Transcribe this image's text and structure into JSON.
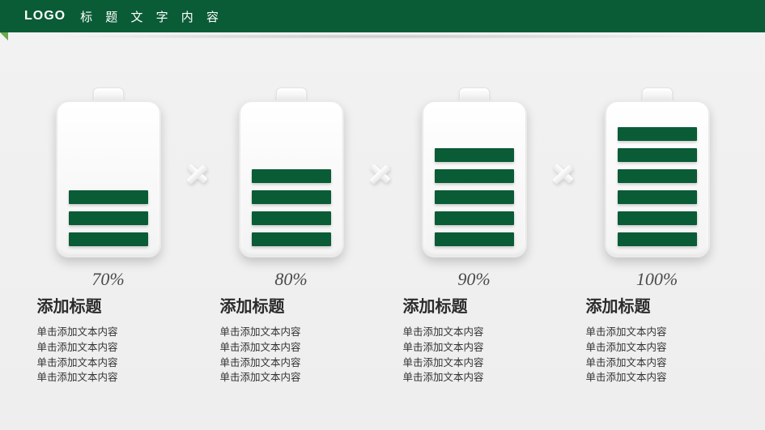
{
  "header": {
    "logo": "LOGO",
    "title": "标 题 文 字 内 容"
  },
  "style": {
    "accent_color": "#0a5c36",
    "bar_color": "#0a5c36",
    "background": "#f1f1f1",
    "battery_body": "#ffffff",
    "max_bars": 7
  },
  "batteries": [
    {
      "percent": "70%",
      "bars": 3,
      "title": "添加标题",
      "lines": [
        "单击添加文本内容",
        "单击添加文本内容",
        "单击添加文本内容",
        "单击添加文本内容"
      ]
    },
    {
      "percent": "80%",
      "bars": 4,
      "title": "添加标题",
      "lines": [
        "单击添加文本内容",
        "单击添加文本内容",
        "单击添加文本内容",
        "单击添加文本内容"
      ]
    },
    {
      "percent": "90%",
      "bars": 5,
      "title": "添加标题",
      "lines": [
        "单击添加文本内容",
        "单击添加文本内容",
        "单击添加文本内容",
        "单击添加文本内容"
      ]
    },
    {
      "percent": "100%",
      "bars": 6,
      "title": "添加标题",
      "lines": [
        "单击添加文本内容",
        "单击添加文本内容",
        "单击添加文本内容",
        "单击添加文本内容"
      ]
    }
  ]
}
